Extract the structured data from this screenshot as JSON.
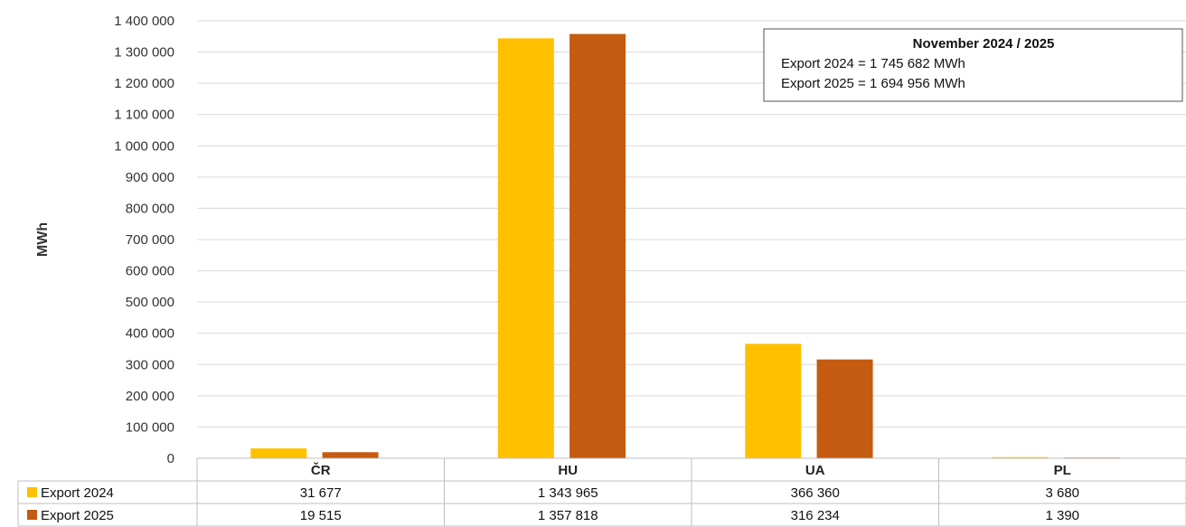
{
  "chart_data": {
    "type": "bar",
    "title": "",
    "xlabel": "",
    "ylabel": "MWh",
    "categories": [
      "ČR",
      "HU",
      "UA",
      "PL"
    ],
    "series": [
      {
        "name": "Export 2024",
        "color": "#FFC000",
        "values": [
          31677,
          1343965,
          366360,
          3680
        ],
        "display": [
          "31 677",
          "1 343 965",
          "366 360",
          "3 680"
        ]
      },
      {
        "name": "Export 2025",
        "color": "#C55A11",
        "values": [
          19515,
          1357818,
          316234,
          1390
        ],
        "display": [
          "19 515",
          "1 357 818",
          "316 234",
          "1 390"
        ]
      }
    ],
    "ylim": [
      0,
      1400000
    ],
    "yticks": [
      0,
      100000,
      200000,
      300000,
      400000,
      500000,
      600000,
      700000,
      800000,
      900000,
      1000000,
      1100000,
      1200000,
      1300000,
      1400000
    ],
    "ytick_labels": [
      "0",
      "100 000",
      "200 000",
      "300 000",
      "400 000",
      "500 000",
      "600 000",
      "700 000",
      "800 000",
      "900 000",
      "1 000 000",
      "1 100 000",
      "1 200 000",
      "1 300 000",
      "1 400 000"
    ],
    "grid": true,
    "data_table": true,
    "annotation": {
      "title": "November 2024 / 2025",
      "lines": [
        "Export 2024 = 1 745 682 MWh",
        "Export 2025 = 1 694 956 MWh"
      ],
      "placement": "top-right"
    }
  }
}
